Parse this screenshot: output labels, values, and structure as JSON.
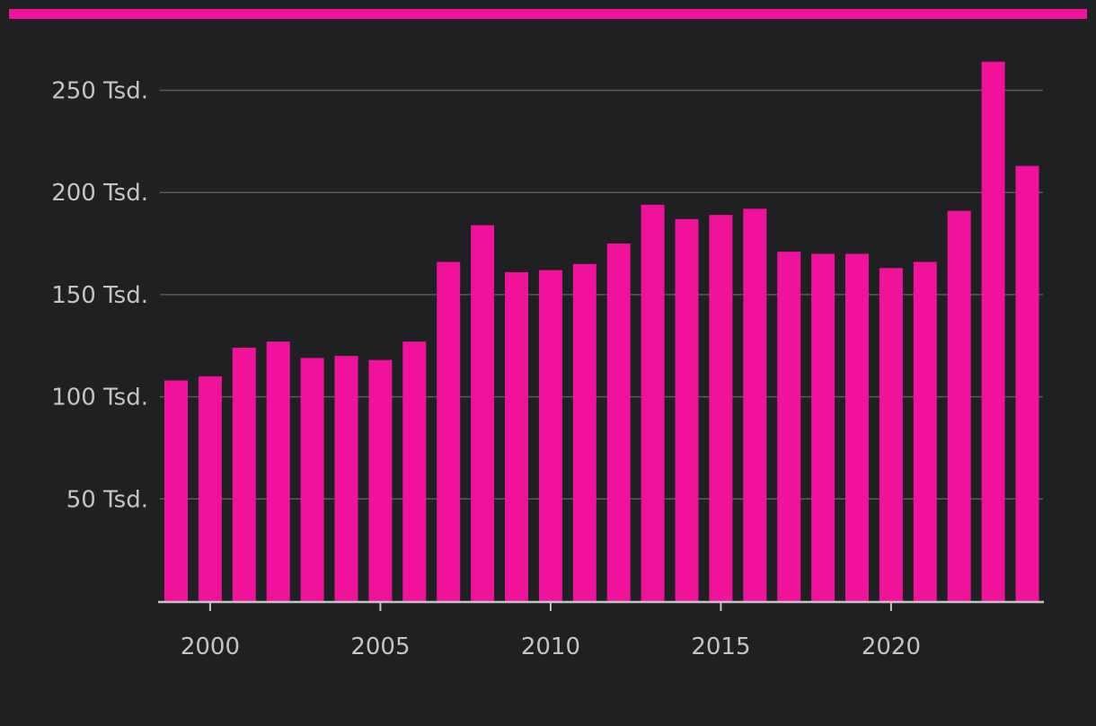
{
  "colors": {
    "background": "#1f2022",
    "bar": "#f0129b",
    "accent_band": "#f0129b",
    "grid": "#5a5a5c",
    "axis": "#c4c4c4",
    "text": "#c4c4c4"
  },
  "chart_data": {
    "type": "bar",
    "title": "",
    "xlabel": "",
    "ylabel": "",
    "categories": [
      "1999",
      "2000",
      "2001",
      "2002",
      "2003",
      "2004",
      "2005",
      "2006",
      "2007",
      "2008",
      "2009",
      "2010",
      "2011",
      "2012",
      "2013",
      "2014",
      "2015",
      "2016",
      "2017",
      "2018",
      "2019",
      "2020",
      "2021",
      "2022",
      "2023",
      "2024"
    ],
    "values": [
      108,
      110,
      124,
      127,
      119,
      120,
      118,
      127,
      166,
      184,
      161,
      162,
      165,
      175,
      194,
      187,
      189,
      192,
      171,
      170,
      170,
      163,
      166,
      191,
      264,
      213
    ],
    "ylim": [
      0,
      270
    ],
    "y_ticks": [
      50,
      100,
      150,
      200,
      250
    ],
    "y_tick_labels": [
      "50 Tsd.",
      "100 Tsd.",
      "150 Tsd.",
      "200 Tsd.",
      "250 Tsd."
    ],
    "x_ticks": [
      "2000",
      "2005",
      "2010",
      "2015",
      "2020"
    ],
    "grid": true,
    "legend": "none"
  }
}
